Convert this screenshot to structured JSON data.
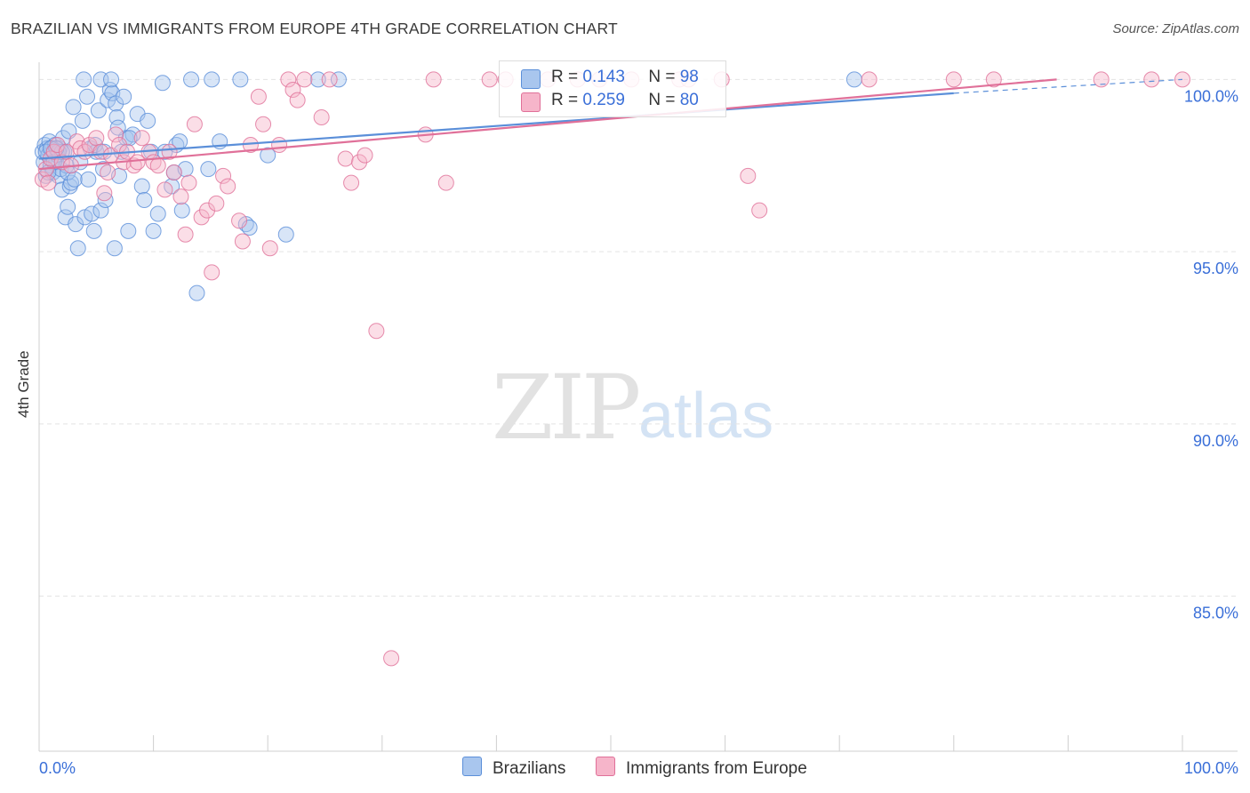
{
  "header": {
    "title": "BRAZILIAN VS IMMIGRANTS FROM EUROPE 4TH GRADE CORRELATION CHART",
    "source": "Source: ZipAtlas.com"
  },
  "watermark": {
    "zip": "ZIP",
    "atlas": "atlas"
  },
  "legend": {
    "rows": [
      {
        "r_label": "R =",
        "r_value": "0.143",
        "n_label": "N =",
        "n_value": "98",
        "color": "#a9c6ee"
      },
      {
        "r_label": "R =",
        "r_value": "0.259",
        "n_label": "N =",
        "n_value": "80",
        "color": "#f6b5ca"
      }
    ]
  },
  "bottom_legend": {
    "items": [
      {
        "label": "Brazilians",
        "color": "#a9c6ee"
      },
      {
        "label": "Immigrants from Europe",
        "color": "#f6b5ca"
      }
    ]
  },
  "chart_data": {
    "type": "scatter",
    "title": "BRAZILIAN VS IMMIGRANTS FROM EUROPE 4TH GRADE CORRELATION CHART",
    "xlabel": "",
    "ylabel": "4th Grade",
    "xlim": [
      0,
      100
    ],
    "ylim": [
      80.5,
      100.5
    ],
    "x_tick_labels": [
      "0.0%",
      "100.0%"
    ],
    "y_ticks": [
      85,
      90,
      95,
      100
    ],
    "y_tick_labels": [
      "85.0%",
      "90.0%",
      "95.0%",
      "100.0%"
    ],
    "grid": true,
    "legend_position": "top-center",
    "series": [
      {
        "name": "Brazilians",
        "color": "#5b8fd9",
        "fill": "#a9c6ee",
        "trend": {
          "x": [
            0,
            80
          ],
          "y": [
            97.7,
            99.6
          ],
          "dashed_to": [
            100,
            100.0
          ]
        },
        "points": [
          [
            0.3,
            97.9
          ],
          [
            0.4,
            97.6
          ],
          [
            0.5,
            98.1
          ],
          [
            0.6,
            97.2
          ],
          [
            0.7,
            98.0
          ],
          [
            0.8,
            97.8
          ],
          [
            0.9,
            98.2
          ],
          [
            1.0,
            97.5
          ],
          [
            1.1,
            98.0
          ],
          [
            1.2,
            97.3
          ],
          [
            1.3,
            97.9
          ],
          [
            1.4,
            98.1
          ],
          [
            1.5,
            97.6
          ],
          [
            1.6,
            97.8
          ],
          [
            1.7,
            97.2
          ],
          [
            1.8,
            98.0
          ],
          [
            1.9,
            97.4
          ],
          [
            2.0,
            96.8
          ],
          [
            2.1,
            98.3
          ],
          [
            2.2,
            97.9
          ],
          [
            2.3,
            96.0
          ],
          [
            2.4,
            97.5
          ],
          [
            2.5,
            96.3
          ],
          [
            2.6,
            98.5
          ],
          [
            2.7,
            96.9
          ],
          [
            2.8,
            97.0
          ],
          [
            3.0,
            99.2
          ],
          [
            3.2,
            95.8
          ],
          [
            3.4,
            95.1
          ],
          [
            3.6,
            97.6
          ],
          [
            3.8,
            98.8
          ],
          [
            4.0,
            96.0
          ],
          [
            4.2,
            99.5
          ],
          [
            4.5,
            98.0
          ],
          [
            4.6,
            96.1
          ],
          [
            4.8,
            95.6
          ],
          [
            5.0,
            97.9
          ],
          [
            5.2,
            99.1
          ],
          [
            5.4,
            96.2
          ],
          [
            5.6,
            97.4
          ],
          [
            5.8,
            96.5
          ],
          [
            6.0,
            99.4
          ],
          [
            6.2,
            99.7
          ],
          [
            6.4,
            99.6
          ],
          [
            6.6,
            95.1
          ],
          [
            6.7,
            99.3
          ],
          [
            6.8,
            98.9
          ],
          [
            7.0,
            97.2
          ],
          [
            7.2,
            97.9
          ],
          [
            7.4,
            99.5
          ],
          [
            7.6,
            98.3
          ],
          [
            7.8,
            95.6
          ],
          [
            8.2,
            98.4
          ],
          [
            8.6,
            99.0
          ],
          [
            9.0,
            96.9
          ],
          [
            9.2,
            96.5
          ],
          [
            9.5,
            98.8
          ],
          [
            9.8,
            97.9
          ],
          [
            10.0,
            95.6
          ],
          [
            10.4,
            96.1
          ],
          [
            10.8,
            99.9
          ],
          [
            11.0,
            97.9
          ],
          [
            11.6,
            96.9
          ],
          [
            11.8,
            97.3
          ],
          [
            12.0,
            98.1
          ],
          [
            12.3,
            98.2
          ],
          [
            12.5,
            96.2
          ],
          [
            12.8,
            97.4
          ],
          [
            13.3,
            100.0
          ],
          [
            13.8,
            93.8
          ],
          [
            14.8,
            97.4
          ],
          [
            15.1,
            100.0
          ],
          [
            15.8,
            98.2
          ],
          [
            17.6,
            100.0
          ],
          [
            18.1,
            95.8
          ],
          [
            18.4,
            95.7
          ],
          [
            20.0,
            97.8
          ],
          [
            21.6,
            95.5
          ],
          [
            24.4,
            100.0
          ],
          [
            26.2,
            100.0
          ],
          [
            3.9,
            100.0
          ],
          [
            5.4,
            100.0
          ],
          [
            6.3,
            100.0
          ],
          [
            71.3,
            100.0
          ],
          [
            0.6,
            97.9
          ],
          [
            1.0,
            98.0
          ],
          [
            1.3,
            97.6
          ],
          [
            1.7,
            97.9
          ],
          [
            2.0,
            97.9
          ],
          [
            2.5,
            97.3
          ],
          [
            3.1,
            97.1
          ],
          [
            4.3,
            97.1
          ],
          [
            4.9,
            98.1
          ],
          [
            5.7,
            97.9
          ],
          [
            6.9,
            98.6
          ],
          [
            7.9,
            98.3
          ],
          [
            0.8,
            97.3
          ],
          [
            1.5,
            98.0
          ]
        ]
      },
      {
        "name": "Immigrants from Europe",
        "color": "#e07099",
        "fill": "#f6b5ca",
        "trend": {
          "x": [
            0,
            89
          ],
          "y": [
            97.4,
            100.0
          ]
        },
        "points": [
          [
            0.3,
            97.1
          ],
          [
            0.6,
            97.4
          ],
          [
            1.0,
            97.7
          ],
          [
            1.3,
            97.9
          ],
          [
            1.6,
            98.1
          ],
          [
            2.0,
            97.6
          ],
          [
            2.4,
            97.9
          ],
          [
            2.8,
            97.5
          ],
          [
            3.3,
            98.2
          ],
          [
            3.6,
            98.0
          ],
          [
            4.0,
            97.9
          ],
          [
            4.4,
            98.1
          ],
          [
            5.0,
            98.3
          ],
          [
            5.4,
            97.9
          ],
          [
            5.7,
            96.7
          ],
          [
            6.0,
            97.3
          ],
          [
            6.3,
            97.8
          ],
          [
            6.7,
            98.4
          ],
          [
            7.0,
            98.1
          ],
          [
            7.4,
            97.6
          ],
          [
            7.7,
            97.9
          ],
          [
            8.3,
            97.5
          ],
          [
            8.6,
            97.6
          ],
          [
            9.0,
            98.3
          ],
          [
            9.6,
            97.9
          ],
          [
            10.0,
            97.6
          ],
          [
            10.4,
            97.5
          ],
          [
            11.0,
            96.8
          ],
          [
            11.4,
            97.9
          ],
          [
            11.8,
            97.3
          ],
          [
            12.4,
            96.6
          ],
          [
            12.8,
            95.5
          ],
          [
            13.1,
            97.0
          ],
          [
            13.6,
            98.7
          ],
          [
            14.2,
            96.0
          ],
          [
            14.7,
            96.2
          ],
          [
            15.1,
            94.4
          ],
          [
            15.5,
            96.4
          ],
          [
            16.1,
            97.2
          ],
          [
            16.5,
            96.9
          ],
          [
            17.5,
            95.9
          ],
          [
            17.8,
            95.3
          ],
          [
            18.5,
            98.1
          ],
          [
            19.2,
            99.5
          ],
          [
            19.6,
            98.7
          ],
          [
            20.2,
            95.1
          ],
          [
            21.0,
            98.1
          ],
          [
            21.8,
            100.0
          ],
          [
            22.2,
            99.7
          ],
          [
            22.6,
            99.4
          ],
          [
            23.2,
            100.0
          ],
          [
            24.7,
            98.9
          ],
          [
            25.4,
            100.0
          ],
          [
            26.8,
            97.7
          ],
          [
            27.3,
            97.0
          ],
          [
            28.0,
            97.6
          ],
          [
            28.5,
            97.8
          ],
          [
            29.5,
            92.7
          ],
          [
            30.8,
            83.2
          ],
          [
            33.8,
            98.4
          ],
          [
            34.5,
            100.0
          ],
          [
            35.6,
            97.0
          ],
          [
            39.4,
            100.0
          ],
          [
            40.8,
            100.0
          ],
          [
            44.5,
            100.0
          ],
          [
            47.1,
            100.0
          ],
          [
            49.0,
            100.0
          ],
          [
            51.8,
            100.0
          ],
          [
            56.0,
            100.0
          ],
          [
            56.8,
            100.0
          ],
          [
            59.7,
            100.0
          ],
          [
            62.0,
            97.2
          ],
          [
            63.0,
            96.2
          ],
          [
            72.6,
            100.0
          ],
          [
            80.0,
            100.0
          ],
          [
            83.5,
            100.0
          ],
          [
            92.9,
            100.0
          ],
          [
            97.3,
            100.0
          ],
          [
            100.0,
            100.0
          ],
          [
            0.8,
            97.0
          ]
        ]
      }
    ]
  }
}
